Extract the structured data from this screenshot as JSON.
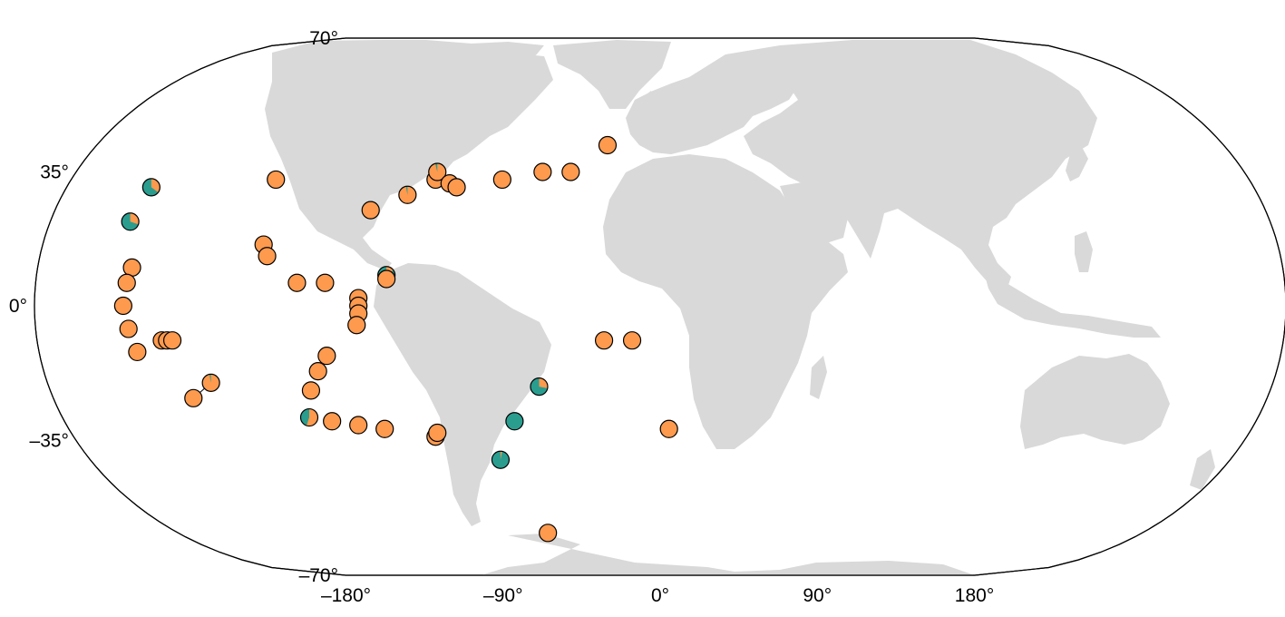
{
  "map": {
    "projection": "Winkel-style",
    "colors": {
      "ocean": "#ffffff",
      "land": "#d9d9d9",
      "outline": "#000000",
      "class_orange": "#fd9a4e",
      "class_teal": "#2a9d8f"
    },
    "lat_labels": [
      {
        "value": 70,
        "text": "70°"
      },
      {
        "value": 35,
        "text": "35°"
      },
      {
        "value": 0,
        "text": "0°"
      },
      {
        "value": -35,
        "text": "–35°"
      },
      {
        "value": -70,
        "text": "–70°"
      }
    ],
    "lon_labels": [
      {
        "value": -180,
        "text": "–180°"
      },
      {
        "value": -90,
        "text": "–90°"
      },
      {
        "value": 0,
        "text": "0°"
      },
      {
        "value": 90,
        "text": "90°"
      },
      {
        "value": 180,
        "text": "180°"
      }
    ],
    "sites": [
      {
        "lon": -290,
        "lat": 31,
        "teal": 0.65
      },
      {
        "lon": -302,
        "lat": 22,
        "teal": 0.7
      },
      {
        "lon": -301,
        "lat": 10,
        "teal": 0
      },
      {
        "lon": -304,
        "lat": 6,
        "teal": 0
      },
      {
        "lon": -306,
        "lat": 0,
        "teal": 0
      },
      {
        "lon": -303,
        "lat": -6,
        "teal": 0
      },
      {
        "lon": -284,
        "lat": -9,
        "teal": 0
      },
      {
        "lon": -281,
        "lat": -9,
        "teal": 0
      },
      {
        "lon": -278,
        "lat": -9,
        "teal": 0
      },
      {
        "lon": -298,
        "lat": -12,
        "teal": 0
      },
      {
        "lon": -256,
        "lat": -20,
        "teal": 0.03
      },
      {
        "lon": -266,
        "lat": -24,
        "teal": 0
      },
      {
        "lon": -219,
        "lat": 33,
        "teal": 0
      },
      {
        "lon": -226,
        "lat": 16,
        "teal": 0
      },
      {
        "lon": -224,
        "lat": 13,
        "teal": 0
      },
      {
        "lon": -207,
        "lat": 6,
        "teal": 0
      },
      {
        "lon": -191,
        "lat": 6,
        "teal": 0
      },
      {
        "lon": -190,
        "lat": -13,
        "teal": 0
      },
      {
        "lon": -195,
        "lat": -17,
        "teal": 0
      },
      {
        "lon": -199,
        "lat": -22,
        "teal": 0
      },
      {
        "lon": -200,
        "lat": -29,
        "teal": 0.45
      },
      {
        "lon": -187,
        "lat": -30,
        "teal": 0
      },
      {
        "lon": -172,
        "lat": -31,
        "teal": 0
      },
      {
        "lon": -157,
        "lat": -32,
        "teal": 0
      },
      {
        "lon": -172,
        "lat": 2,
        "teal": 0
      },
      {
        "lon": -172,
        "lat": 0,
        "teal": 0
      },
      {
        "lon": -172,
        "lat": -2,
        "teal": 0
      },
      {
        "lon": -173,
        "lat": -5,
        "teal": 0
      },
      {
        "lon": -165,
        "lat": 25,
        "teal": 0
      },
      {
        "lon": -156,
        "lat": 8,
        "teal": 0.85
      },
      {
        "lon": -156,
        "lat": 7,
        "teal": 0
      },
      {
        "lon": -144,
        "lat": 29,
        "teal": 0.03
      },
      {
        "lon": -128,
        "lat": 33,
        "teal": 0
      },
      {
        "lon": -127,
        "lat": 35,
        "teal": 0.04
      },
      {
        "lon": -120,
        "lat": 32,
        "teal": 0
      },
      {
        "lon": -116,
        "lat": 31,
        "teal": 0
      },
      {
        "lon": -128,
        "lat": -34,
        "teal": 0
      },
      {
        "lon": -127,
        "lat": -33,
        "teal": 0
      },
      {
        "lon": -90,
        "lat": 33,
        "teal": 0
      },
      {
        "lon": -67,
        "lat": 35,
        "teal": 0
      },
      {
        "lon": -51,
        "lat": 35,
        "teal": 0
      },
      {
        "lon": -30,
        "lat": 42,
        "teal": 0
      },
      {
        "lon": -32,
        "lat": -9,
        "teal": 0
      },
      {
        "lon": -16,
        "lat": -9,
        "teal": 0
      },
      {
        "lon": -69,
        "lat": -21,
        "teal": 0.72
      },
      {
        "lon": -83,
        "lat": -30,
        "teal": 1
      },
      {
        "lon": -91,
        "lat": -40,
        "teal": 0.97
      },
      {
        "lon": 5,
        "lat": -32,
        "teal": 0
      },
      {
        "lon": -64,
        "lat": -59,
        "teal": 0
      }
    ],
    "leaders": [
      {
        "from_lon": -266,
        "from_lat": -24,
        "to_lon": -256,
        "to_lat": -20
      }
    ]
  }
}
